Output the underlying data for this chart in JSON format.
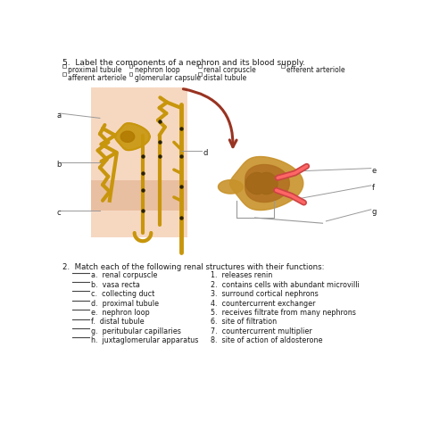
{
  "title": "5.  Label the components of a nephron and its blood supply.",
  "checkboxes_row1": [
    "proximal tubule",
    "nephron loop",
    "renal corpuscle",
    "efferent arteriole"
  ],
  "checkboxes_row2": [
    "afferent arteriole",
    "glomerular capsule",
    "distal tubule"
  ],
  "section2_title": "2.  Match each of the following renal structures with their functions:",
  "structures": [
    "a.  renal corpuscle",
    "b.  vasa recta",
    "c.  collecting duct",
    "d.  proximal tubule",
    "e.  nephron loop",
    "f.  distal tubule",
    "g.  peritubular capillaries",
    "h.  juxtaglomerular apparatus"
  ],
  "functions": [
    "1.  releases renin",
    "2.  contains cells with abundant microvilli",
    "3.  surround cortical nephrons",
    "4.  countercurrent exchanger",
    "5.  receives filtrate from many nephrons",
    "6.  site of filtration",
    "7.  countercurrent multiplier",
    "8.  site of action of aldosterone"
  ],
  "bg_color": "#ffffff",
  "cortex_color": "#f2c4a0",
  "nephron_color": "#c8960c",
  "text_color": "#1a1a1a",
  "line_color": "#999999",
  "arrow_color": "#993322",
  "glom_outer": "#c8922a",
  "glom_inner": "#b07828",
  "vessel_color": "#cc4444"
}
